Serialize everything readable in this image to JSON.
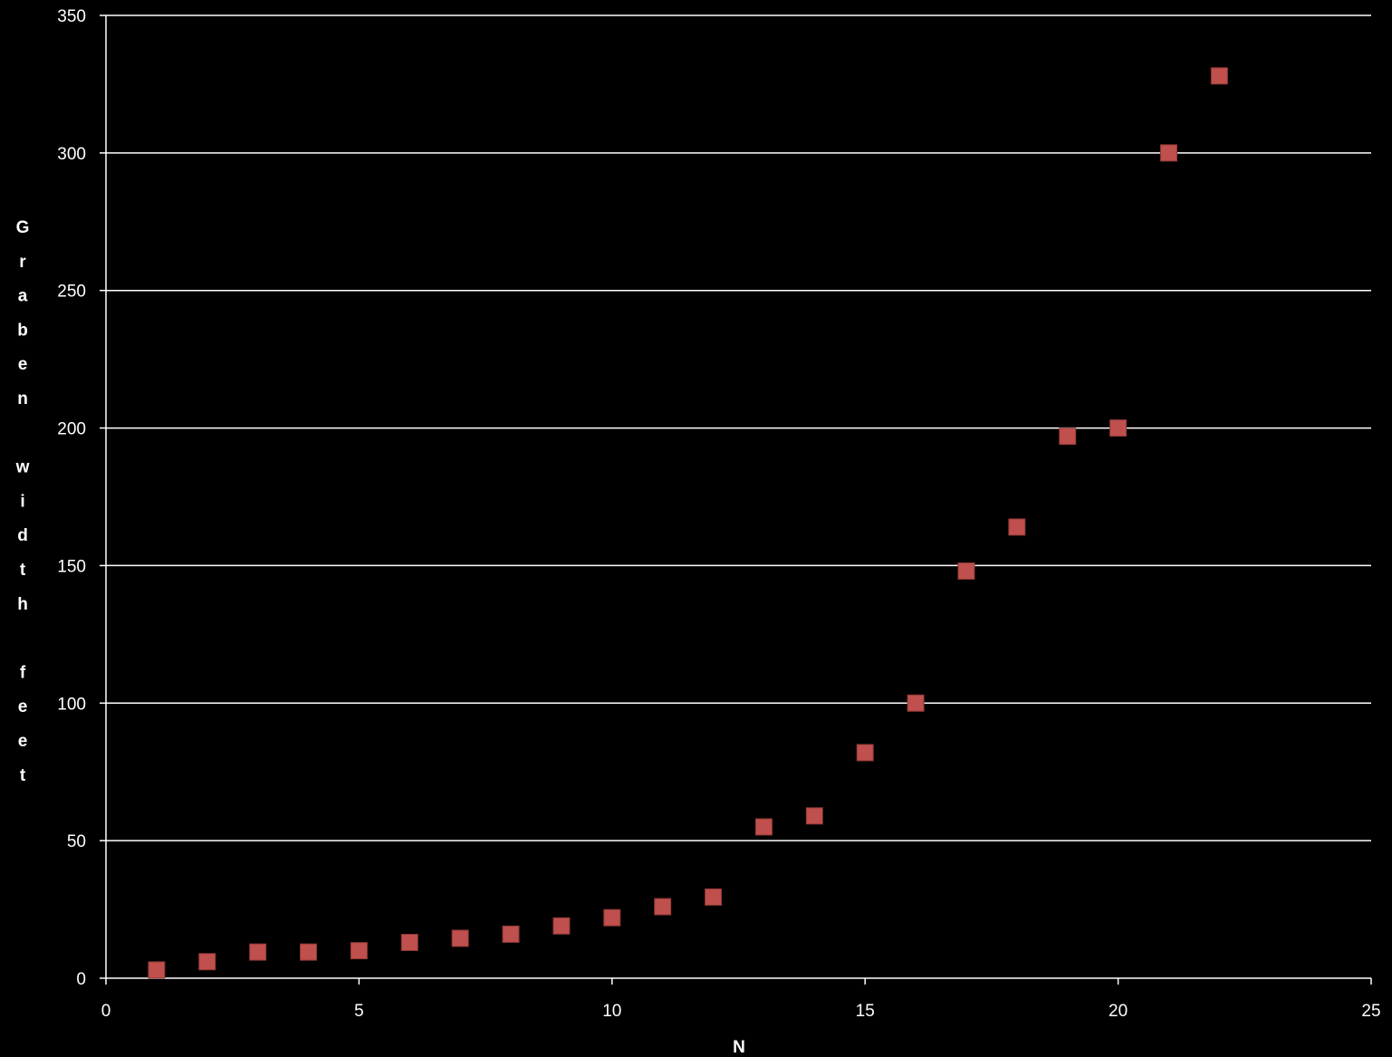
{
  "colors": {
    "background": "#000000",
    "axis": "#ffffff",
    "grid": "#ffffff",
    "marker": "#c0504d",
    "marker_edge": "#8c3836",
    "text": "#ffffff"
  },
  "chart_data": {
    "type": "scatter",
    "title": "",
    "xlabel": "N",
    "ylabel": "Graben width feet",
    "xlim": [
      0,
      25
    ],
    "ylim": [
      0,
      350
    ],
    "xticks": [
      0,
      5,
      10,
      15,
      20,
      25
    ],
    "yticks": [
      0,
      50,
      100,
      150,
      200,
      250,
      300,
      350
    ],
    "grid": "horizontal",
    "legend": "none",
    "marker": "square",
    "series": [
      {
        "x": [
          1,
          2,
          3,
          4,
          5,
          6,
          7,
          8,
          9,
          10,
          11,
          12,
          13,
          14,
          15,
          16,
          17,
          18,
          19,
          20,
          21,
          22
        ],
        "y": [
          3,
          6,
          9.5,
          9.5,
          10,
          13,
          14.5,
          16,
          19,
          22,
          26,
          29.5,
          55,
          59,
          82,
          100,
          148,
          164,
          197,
          200,
          300,
          328
        ]
      }
    ]
  }
}
